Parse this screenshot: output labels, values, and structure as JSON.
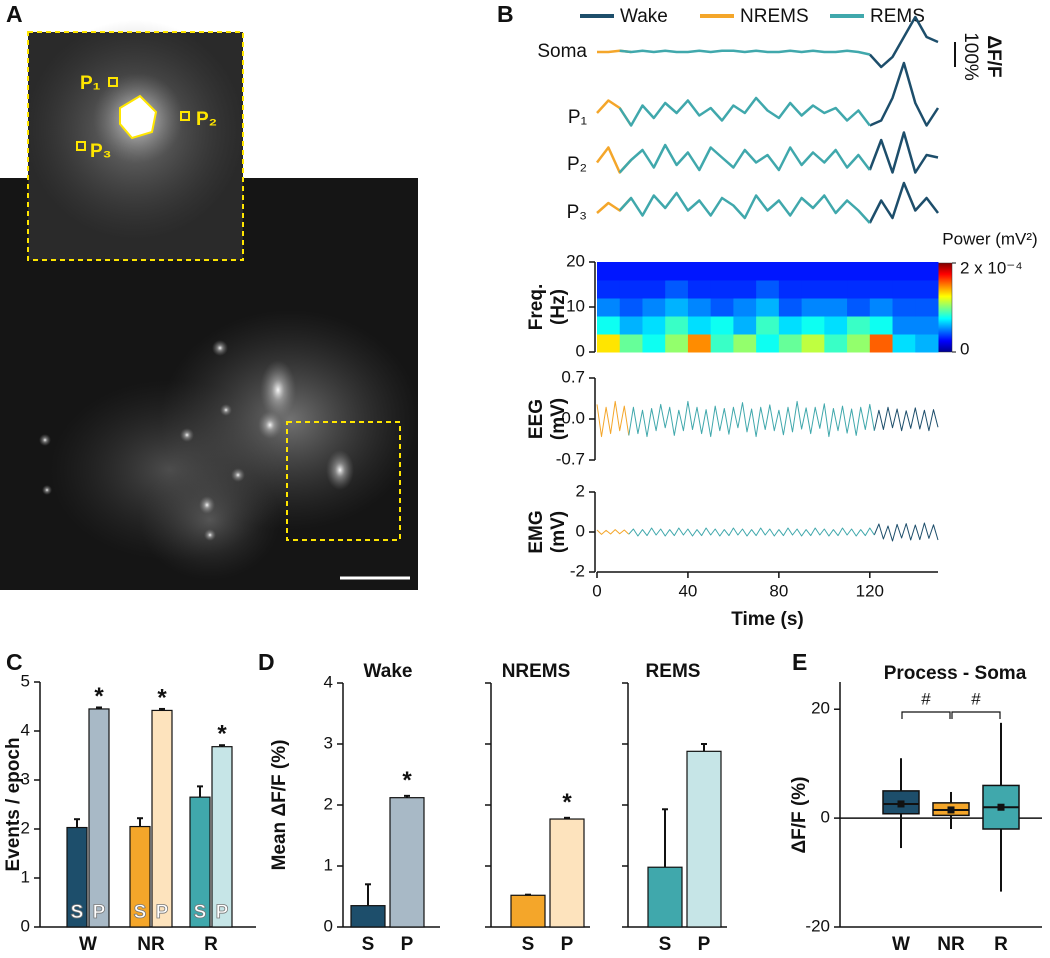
{
  "panel_labels": [
    "A",
    "B",
    "C",
    "D",
    "E"
  ],
  "image_a": {
    "labels": [
      "P₁",
      "P₂",
      "P₃"
    ]
  },
  "chart_data": [
    {
      "type": "line",
      "states": [
        {
          "name": "Wake",
          "color": "#1d4e6b",
          "period": [
            123,
            150
          ]
        },
        {
          "name": "NREMS",
          "color": "#f4a62a",
          "period": [
            0,
            15
          ]
        },
        {
          "name": "REMS",
          "color": "#40a8ac",
          "period": [
            15,
            123
          ]
        }
      ],
      "xlim": [
        0,
        150
      ],
      "x": [
        0,
        5,
        10,
        15,
        20,
        25,
        30,
        35,
        40,
        45,
        50,
        55,
        60,
        65,
        70,
        75,
        80,
        85,
        90,
        95,
        100,
        105,
        110,
        115,
        120,
        125,
        130,
        135,
        140,
        145,
        150
      ],
      "series": [
        {
          "name": "Soma",
          "values": [
            0,
            0,
            5,
            0,
            5,
            0,
            5,
            0,
            0,
            5,
            0,
            5,
            5,
            0,
            5,
            0,
            0,
            5,
            0,
            5,
            0,
            0,
            5,
            0,
            -10,
            -60,
            -20,
            60,
            140,
            60,
            40
          ]
        },
        {
          "name": "P₁",
          "values": [
            20,
            70,
            40,
            -30,
            50,
            0,
            60,
            20,
            70,
            10,
            40,
            -10,
            50,
            20,
            80,
            30,
            0,
            60,
            10,
            50,
            20,
            40,
            -10,
            30,
            -30,
            -10,
            80,
            220,
            60,
            -30,
            40
          ]
        },
        {
          "name": "P₂",
          "values": [
            10,
            70,
            -30,
            20,
            60,
            -10,
            80,
            0,
            50,
            -20,
            70,
            30,
            -10,
            60,
            10,
            40,
            -20,
            70,
            0,
            50,
            10,
            60,
            -10,
            40,
            -20,
            100,
            -30,
            130,
            -30,
            40,
            30
          ]
        },
        {
          "name": "P₃",
          "values": [
            0,
            40,
            10,
            60,
            -10,
            70,
            20,
            80,
            10,
            50,
            -10,
            60,
            30,
            -20,
            70,
            10,
            50,
            -10,
            60,
            20,
            70,
            0,
            50,
            10,
            -40,
            50,
            -20,
            120,
            10,
            60,
            0
          ]
        }
      ],
      "scale_bar": {
        "title": "ΔF/F",
        "value": 100,
        "label": "100%"
      }
    },
    {
      "type": "heatmap",
      "ylabel": [
        "Freq.",
        "(Hz)"
      ],
      "ylim": [
        0,
        20
      ],
      "yticks": [
        0,
        10,
        20
      ],
      "x_edges": [
        0,
        10,
        20,
        30,
        40,
        50,
        60,
        70,
        80,
        90,
        100,
        110,
        120,
        130,
        140,
        150
      ],
      "y_edges": [
        0,
        4,
        8,
        12,
        16,
        20
      ],
      "values": [
        [
          0.00012,
          8e-05,
          6e-05,
          9e-05,
          0.00014,
          7e-05,
          9e-05,
          6e-05,
          8e-05,
          0.0001,
          7e-05,
          9e-05,
          0.00015,
          5e-05,
          4e-05
        ],
        [
          6e-05,
          4e-05,
          5e-05,
          7e-05,
          5e-05,
          6e-05,
          4e-05,
          7e-05,
          5e-05,
          6e-05,
          5e-05,
          7e-05,
          6e-05,
          3e-05,
          3e-05
        ],
        [
          3e-05,
          2e-05,
          3e-05,
          4e-05,
          3e-05,
          2e-05,
          3e-05,
          4e-05,
          2e-05,
          3e-05,
          3e-05,
          2e-05,
          3e-05,
          2e-05,
          2e-05
        ],
        [
          1e-05,
          1e-05,
          1e-05,
          2e-05,
          1e-05,
          1e-05,
          1e-05,
          2e-05,
          1e-05,
          1e-05,
          1e-05,
          1e-05,
          1e-05,
          1e-05,
          1e-05
        ],
        [
          5e-06,
          5e-06,
          5e-06,
          5e-06,
          5e-06,
          5e-06,
          5e-06,
          5e-06,
          5e-06,
          5e-06,
          5e-06,
          5e-06,
          5e-06,
          5e-06,
          5e-06
        ]
      ],
      "colorbar_label": "Power (mV²)",
      "clim": [
        0,
        0.0002
      ],
      "cticks": [
        0,
        {
          "value": 0.0002,
          "label": "2 x 10⁻⁴"
        }
      ]
    },
    {
      "type": "line",
      "ylabel": [
        "EEG",
        "(mV)"
      ],
      "xlim": [
        0,
        150
      ],
      "ylim": [
        -0.7,
        0.7
      ],
      "yticks": [
        -0.7,
        {
          "value": 0,
          "label": "0.0"
        },
        0.7
      ],
      "x": [
        0,
        2,
        4,
        6,
        8,
        10,
        12,
        14,
        16,
        18,
        20,
        22,
        24,
        26,
        28,
        30,
        32,
        34,
        36,
        38,
        40,
        42,
        44,
        46,
        48,
        50,
        52,
        54,
        56,
        58,
        60,
        62,
        64,
        66,
        68,
        70,
        72,
        74,
        76,
        78,
        80,
        82,
        84,
        86,
        88,
        90,
        92,
        94,
        96,
        98,
        100,
        102,
        104,
        106,
        108,
        110,
        112,
        114,
        116,
        118,
        120,
        122,
        124,
        126,
        128,
        130,
        132,
        134,
        136,
        138,
        140,
        142,
        144,
        146,
        148,
        150
      ],
      "series": [
        {
          "values": [
            0.25,
            -0.3,
            0.2,
            -0.25,
            0.3,
            -0.2,
            0.22,
            -0.28,
            0.2,
            -0.25,
            0.15,
            -0.3,
            0.18,
            -0.2,
            0.25,
            -0.15,
            0.2,
            -0.28,
            0.15,
            -0.2,
            0.3,
            -0.18,
            0.2,
            -0.25,
            0.16,
            -0.3,
            0.22,
            -0.2,
            0.18,
            -0.26,
            0.2,
            -0.15,
            0.28,
            -0.22,
            0.17,
            -0.3,
            0.2,
            -0.18,
            0.24,
            -0.2,
            0.15,
            -0.27,
            0.2,
            -0.22,
            0.3,
            -0.17,
            0.19,
            -0.25,
            0.2,
            -0.16,
            0.26,
            -0.3,
            0.18,
            -0.2,
            0.22,
            -0.24,
            0.17,
            -0.28,
            0.2,
            -0.18,
            0.25,
            -0.2,
            0.15,
            -0.18,
            0.2,
            -0.15,
            0.17,
            -0.2,
            0.14,
            -0.16,
            0.19,
            -0.17,
            0.15,
            -0.2,
            0.16,
            -0.14
          ]
        }
      ]
    },
    {
      "type": "line",
      "ylabel": [
        "EMG",
        "(mV)"
      ],
      "xlabel": "Time (s)",
      "xlim": [
        0,
        150
      ],
      "xticks": [
        0,
        40,
        80,
        120
      ],
      "ylim": [
        -2,
        2
      ],
      "yticks": [
        -2,
        0,
        2
      ],
      "x": [
        0,
        2,
        4,
        6,
        8,
        10,
        12,
        14,
        16,
        18,
        20,
        22,
        24,
        26,
        28,
        30,
        32,
        34,
        36,
        38,
        40,
        42,
        44,
        46,
        48,
        50,
        52,
        54,
        56,
        58,
        60,
        62,
        64,
        66,
        68,
        70,
        72,
        74,
        76,
        78,
        80,
        82,
        84,
        86,
        88,
        90,
        92,
        94,
        96,
        98,
        100,
        102,
        104,
        106,
        108,
        110,
        112,
        114,
        116,
        118,
        120,
        122,
        124,
        126,
        128,
        130,
        132,
        134,
        136,
        138,
        140,
        142,
        144,
        146,
        148,
        150
      ],
      "series": [
        {
          "values": [
            0.1,
            -0.12,
            0.08,
            -0.1,
            0.12,
            -0.09,
            0.1,
            -0.11,
            0.15,
            -0.2,
            0.12,
            -0.18,
            0.2,
            -0.15,
            0.15,
            -0.2,
            0.12,
            -0.18,
            0.2,
            -0.15,
            0.15,
            -0.2,
            0.12,
            -0.18,
            0.2,
            -0.15,
            0.15,
            -0.2,
            0.12,
            -0.18,
            0.2,
            -0.15,
            0.15,
            -0.2,
            0.12,
            -0.18,
            0.2,
            -0.15,
            0.15,
            -0.2,
            0.12,
            -0.18,
            0.2,
            -0.15,
            0.15,
            -0.2,
            0.12,
            -0.18,
            0.2,
            -0.15,
            0.15,
            -0.2,
            0.12,
            -0.18,
            0.2,
            -0.15,
            0.15,
            -0.2,
            0.12,
            -0.18,
            0.2,
            -0.15,
            0.4,
            -0.35,
            0.3,
            -0.45,
            0.38,
            -0.3,
            0.42,
            -0.4,
            0.35,
            -0.38,
            0.45,
            -0.32,
            0.36,
            -0.4
          ]
        }
      ]
    },
    {
      "type": "bar",
      "ylabel": "Events / epoch",
      "categories": [
        "W",
        "NR",
        "R"
      ],
      "ylim": [
        0,
        5
      ],
      "yticks": [
        0,
        1,
        2,
        3,
        4,
        5
      ],
      "series": [
        {
          "name": "S",
          "colors": [
            "#1d4e6b",
            "#f4a62a",
            "#40a8ac"
          ],
          "values": [
            2.03,
            2.05,
            2.65
          ],
          "errors": [
            0.17,
            0.17,
            0.22
          ]
        },
        {
          "name": "P",
          "colors": [
            "#a8b9c6",
            "#fde3bd",
            "#c6e5e7"
          ],
          "values": [
            4.45,
            4.42,
            3.68
          ],
          "errors": [
            0.03,
            0.03,
            0.03
          ],
          "annotations": [
            "*",
            "*",
            "*"
          ]
        }
      ]
    },
    {
      "type": "bar",
      "title": "Wake",
      "ylabel": "Mean ΔF/F (%)",
      "categories": [
        "S",
        "P"
      ],
      "colors": [
        "#1d4e6b",
        "#a8b9c6"
      ],
      "values": [
        0.35,
        2.12
      ],
      "errors": [
        0.35,
        0.03
      ],
      "annotations": [
        null,
        "*"
      ],
      "ylim": [
        0,
        4
      ],
      "yticks": [
        0,
        1,
        2,
        3,
        4
      ]
    },
    {
      "type": "bar",
      "title": "NREMS",
      "categories": [
        "S",
        "P"
      ],
      "colors": [
        "#f4a62a",
        "#fde3bd"
      ],
      "values": [
        0.52,
        1.77
      ],
      "errors": [
        0.01,
        0.02
      ],
      "annotations": [
        null,
        "*"
      ],
      "ylim": [
        0,
        4
      ],
      "yticks": [
        0,
        1,
        2,
        3,
        4
      ],
      "ytick_labels": false
    },
    {
      "type": "bar",
      "title": "REMS",
      "categories": [
        "S",
        "P"
      ],
      "colors": [
        "#40a8ac",
        "#c6e5e7"
      ],
      "values": [
        0.98,
        2.88
      ],
      "errors": [
        0.95,
        0.12
      ],
      "ylim": [
        0,
        4
      ],
      "yticks": [
        0,
        1,
        2,
        3,
        4
      ],
      "ytick_labels": false
    },
    {
      "type": "box",
      "title": "Process - Soma",
      "ylabel": "ΔF/F (%)",
      "categories": [
        "W",
        "NR",
        "R"
      ],
      "colors": [
        "#1d4e6b",
        "#f4a62a",
        "#40a8ac"
      ],
      "boxes": [
        {
          "min": -5.5,
          "q1": 0.8,
          "median": 2.6,
          "mean": 2.6,
          "q3": 5,
          "max": 11
        },
        {
          "min": -2,
          "q1": 0.5,
          "median": 1.5,
          "mean": 1.5,
          "q3": 2.8,
          "max": 4.8
        },
        {
          "min": -13.5,
          "q1": -2,
          "median": 2,
          "mean": 2,
          "q3": 6,
          "max": 17.5
        }
      ],
      "comparisons": [
        {
          "pair": [
            0,
            1
          ],
          "label": "#"
        },
        {
          "pair": [
            1,
            2
          ],
          "label": "#"
        }
      ],
      "ylim": [
        -20,
        25
      ],
      "yticks": [
        -20,
        0,
        20
      ]
    }
  ]
}
